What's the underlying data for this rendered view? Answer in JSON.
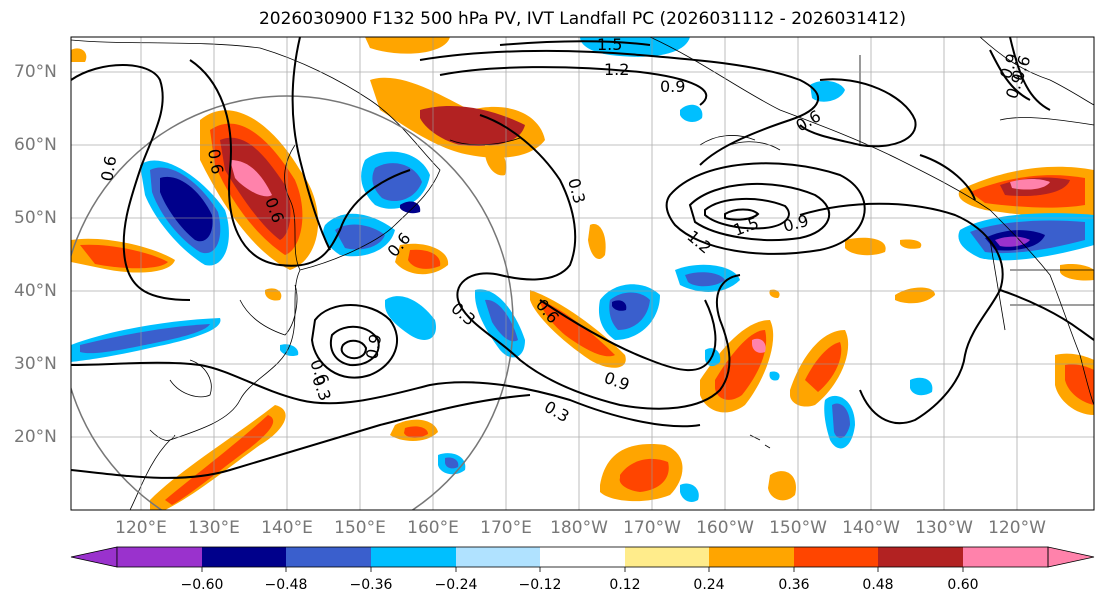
{
  "title": "2026030900 F132 500 hPa PV, IVT Landfall PC (2026031112 - 2026031412)",
  "lat_labels": [
    "70°N",
    "60°N",
    "50°N",
    "40°N",
    "30°N",
    "20°N"
  ],
  "lon_labels": [
    "120°E",
    "130°E",
    "140°E",
    "150°E",
    "160°E",
    "170°E",
    "180°W",
    "170°W",
    "160°W",
    "150°W",
    "140°W",
    "130°W",
    "120°W"
  ],
  "colorbar": {
    "ticks": [
      "−0.60",
      "−0.48",
      "−0.36",
      "−0.24",
      "−0.12",
      "0.12",
      "0.24",
      "0.36",
      "0.48",
      "0.60"
    ],
    "colors": [
      "#9a32cd",
      "#00008b",
      "#3a5fcd",
      "#00bfff",
      "#b0e2ff",
      "#ffffff",
      "#ffec8b",
      "#ffa500",
      "#ff4500",
      "#b22222",
      "#ff82ab"
    ]
  },
  "contour_labels": [
    "1.5",
    "1.2",
    "0.9",
    "0.6",
    "0.3",
    "0.6",
    "0.6",
    "0.6",
    "0.9",
    "1.2",
    "1.5",
    "0.9",
    "0.6",
    "0.9",
    "0.3",
    "0.3",
    "0.6",
    "0.9",
    "0.3",
    "0.9",
    "0.6",
    "0.6"
  ],
  "features": {
    "circle": "target-region-circle",
    "land": "coastlines"
  }
}
